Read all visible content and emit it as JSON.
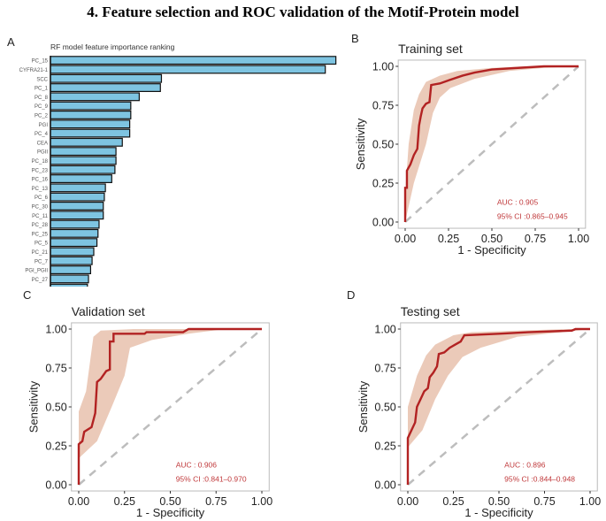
{
  "figure": {
    "title": "4.   Feature selection and ROC validation of the Motif-Protein model"
  },
  "chart_data": [
    {
      "panel": "A",
      "type": "bar",
      "orientation": "horizontal",
      "title": "RF model feature importance ranking",
      "categories": [
        "PC_15",
        "CYFRA21-1",
        "SCC",
        "PC_1",
        "PC_8",
        "PC_9",
        "PC_2",
        "PGI",
        "PC_4",
        "CEA",
        "PGII",
        "PC_18",
        "PC_23",
        "PC_16",
        "PC_13",
        "PC_6",
        "PC_30",
        "PC_11",
        "PC_28",
        "PC_25",
        "PC_5",
        "PC_21",
        "PC_7",
        "PGI_PGII",
        "PC_27",
        "PC_22"
      ],
      "values": [
        0.135,
        0.13,
        0.0525,
        0.052,
        0.042,
        0.038,
        0.038,
        0.0375,
        0.0375,
        0.034,
        0.031,
        0.031,
        0.0305,
        0.029,
        0.026,
        0.0255,
        0.025,
        0.025,
        0.023,
        0.0225,
        0.022,
        0.0205,
        0.0197,
        0.019,
        0.018,
        0.0175
      ],
      "xlim": [
        0,
        0.135
      ],
      "xticks": [
        "0.00",
        "0.05",
        "0.10"
      ],
      "xlabel": "",
      "ylabel": "",
      "colors": {
        "bar": "#7ec4e1",
        "edge": "#111111"
      }
    },
    {
      "panel": "B",
      "type": "line",
      "title": "Training set",
      "xlabel": "1 - Specificity",
      "ylabel": "Sensitivity",
      "xlim": [
        0,
        1
      ],
      "ylim": [
        0,
        1
      ],
      "ticks": [
        "0.00",
        "0.25",
        "0.50",
        "0.75",
        "1.00"
      ],
      "auc_label": "AUC : 0.905",
      "ci_label": "95% CI :0.865–0.945",
      "roc": [
        [
          0,
          0
        ],
        [
          0,
          0.22
        ],
        [
          0.01,
          0.22
        ],
        [
          0.01,
          0.33
        ],
        [
          0.03,
          0.37
        ],
        [
          0.05,
          0.43
        ],
        [
          0.07,
          0.47
        ],
        [
          0.08,
          0.62
        ],
        [
          0.09,
          0.68
        ],
        [
          0.1,
          0.73
        ],
        [
          0.12,
          0.76
        ],
        [
          0.14,
          0.77
        ],
        [
          0.15,
          0.88
        ],
        [
          0.2,
          0.89
        ],
        [
          0.25,
          0.91
        ],
        [
          0.33,
          0.94
        ],
        [
          0.4,
          0.96
        ],
        [
          0.5,
          0.98
        ],
        [
          0.65,
          0.99
        ],
        [
          0.8,
          1.0
        ],
        [
          1.0,
          1.0
        ]
      ],
      "ci_upper": [
        [
          0,
          0.18
        ],
        [
          0.02,
          0.5
        ],
        [
          0.05,
          0.72
        ],
        [
          0.08,
          0.82
        ],
        [
          0.12,
          0.9
        ],
        [
          0.2,
          0.94
        ],
        [
          0.3,
          0.97
        ],
        [
          0.5,
          0.99
        ],
        [
          0.7,
          1.0
        ],
        [
          1.0,
          1.0
        ]
      ],
      "ci_lower": [
        [
          0,
          0.0
        ],
        [
          0.05,
          0.25
        ],
        [
          0.12,
          0.5
        ],
        [
          0.16,
          0.7
        ],
        [
          0.2,
          0.8
        ],
        [
          0.26,
          0.86
        ],
        [
          0.4,
          0.92
        ],
        [
          0.6,
          0.97
        ],
        [
          0.8,
          0.99
        ],
        [
          1.0,
          1.0
        ]
      ]
    },
    {
      "panel": "C",
      "type": "line",
      "title": "Validation set",
      "xlabel": "1 - Specificity",
      "ylabel": "Sensitivity",
      "xlim": [
        0,
        1
      ],
      "ylim": [
        0,
        1
      ],
      "ticks": [
        "0.00",
        "0.25",
        "0.50",
        "0.75",
        "1.00"
      ],
      "auc_label": "AUC : 0.906",
      "ci_label": "95% CI :0.841–0.970",
      "roc": [
        [
          0,
          0
        ],
        [
          0,
          0.26
        ],
        [
          0.02,
          0.28
        ],
        [
          0.03,
          0.34
        ],
        [
          0.07,
          0.37
        ],
        [
          0.09,
          0.46
        ],
        [
          0.1,
          0.66
        ],
        [
          0.12,
          0.68
        ],
        [
          0.15,
          0.73
        ],
        [
          0.17,
          0.74
        ],
        [
          0.17,
          0.92
        ],
        [
          0.19,
          0.92
        ],
        [
          0.19,
          0.97
        ],
        [
          0.36,
          0.97
        ],
        [
          0.37,
          0.98
        ],
        [
          0.57,
          0.98
        ],
        [
          0.6,
          1.0
        ],
        [
          1.0,
          1.0
        ]
      ],
      "ci_upper": [
        [
          0,
          0.47
        ],
        [
          0.04,
          0.6
        ],
        [
          0.08,
          0.95
        ],
        [
          0.12,
          0.99
        ],
        [
          0.3,
          1.0
        ],
        [
          1.0,
          1.0
        ]
      ],
      "ci_lower": [
        [
          0,
          0.17
        ],
        [
          0.1,
          0.28
        ],
        [
          0.18,
          0.5
        ],
        [
          0.25,
          0.7
        ],
        [
          0.28,
          0.88
        ],
        [
          0.4,
          0.93
        ],
        [
          0.6,
          0.97
        ],
        [
          0.8,
          1.0
        ],
        [
          1.0,
          1.0
        ]
      ]
    },
    {
      "panel": "D",
      "type": "line",
      "title": "Testing set",
      "xlabel": "1 - Specificity",
      "ylabel": "Sensitivity",
      "xlim": [
        0,
        1
      ],
      "ylim": [
        0,
        1
      ],
      "ticks": [
        "0.00",
        "0.25",
        "0.50",
        "0.75",
        "1.00"
      ],
      "auc_label": "AUC : 0.896",
      "ci_label": "95% CI :0.844–0.948",
      "roc": [
        [
          0,
          0
        ],
        [
          0,
          0.3
        ],
        [
          0.02,
          0.35
        ],
        [
          0.04,
          0.4
        ],
        [
          0.05,
          0.5
        ],
        [
          0.07,
          0.55
        ],
        [
          0.09,
          0.6
        ],
        [
          0.11,
          0.62
        ],
        [
          0.12,
          0.69
        ],
        [
          0.14,
          0.72
        ],
        [
          0.16,
          0.76
        ],
        [
          0.17,
          0.84
        ],
        [
          0.2,
          0.85
        ],
        [
          0.23,
          0.88
        ],
        [
          0.26,
          0.9
        ],
        [
          0.29,
          0.92
        ],
        [
          0.31,
          0.96
        ],
        [
          0.5,
          0.97
        ],
        [
          0.66,
          0.98
        ],
        [
          0.9,
          0.99
        ],
        [
          0.92,
          1.0
        ],
        [
          1.0,
          1.0
        ]
      ],
      "ci_upper": [
        [
          0,
          0.5
        ],
        [
          0.05,
          0.7
        ],
        [
          0.1,
          0.83
        ],
        [
          0.15,
          0.9
        ],
        [
          0.25,
          0.96
        ],
        [
          0.35,
          0.98
        ],
        [
          0.6,
          0.99
        ],
        [
          0.9,
          1.0
        ],
        [
          1.0,
          1.0
        ]
      ],
      "ci_lower": [
        [
          0,
          0.24
        ],
        [
          0.08,
          0.35
        ],
        [
          0.15,
          0.55
        ],
        [
          0.22,
          0.7
        ],
        [
          0.3,
          0.82
        ],
        [
          0.4,
          0.88
        ],
        [
          0.6,
          0.95
        ],
        [
          0.85,
          0.98
        ],
        [
          1.0,
          1.0
        ]
      ]
    }
  ],
  "panel_labels": [
    "A",
    "B",
    "C",
    "D"
  ],
  "colors": {
    "roc_line": "#b22222",
    "ci_band": "#e8c1ad",
    "diagonal": "#bdbdbd",
    "annotation": "#c0393b",
    "frame": "#bbbbbb"
  }
}
